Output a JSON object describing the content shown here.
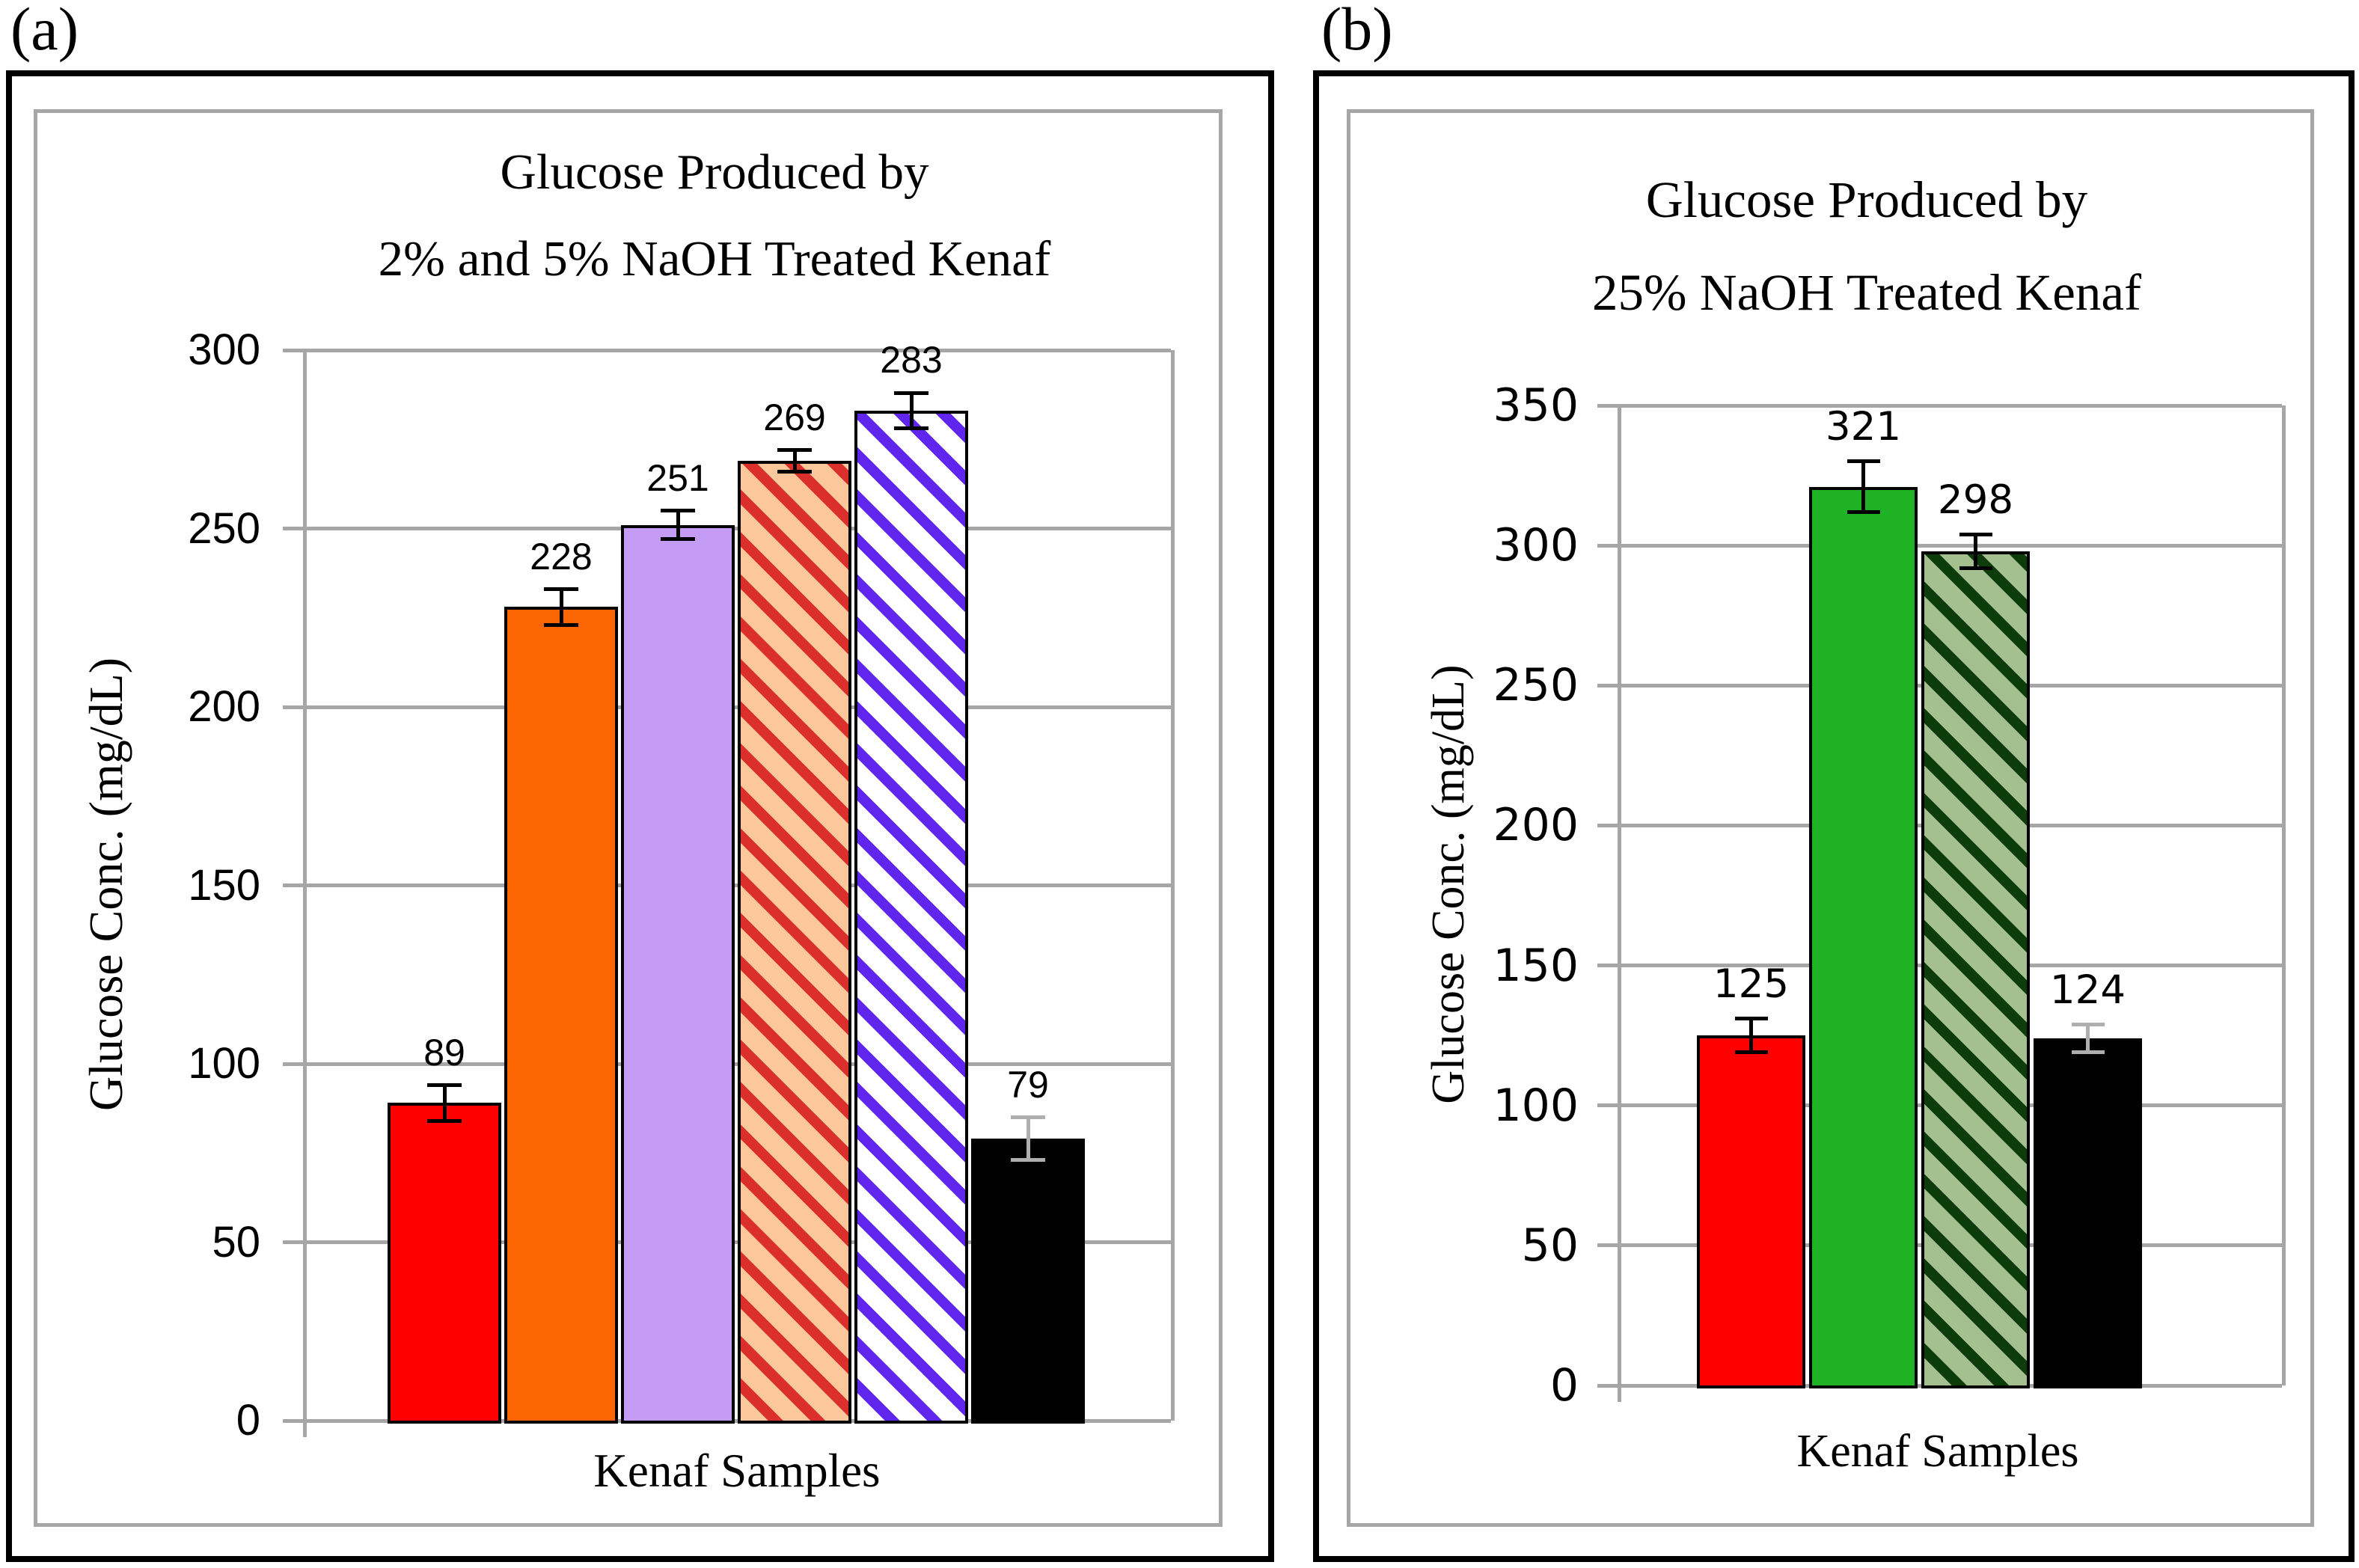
{
  "panels": [
    {
      "panel_label": "(a)",
      "title_line1": "Glucose Produced by",
      "title_line2": "2% and 5% NaOH Treated Kenaf",
      "ylabel": "Glucose Conc. (mg/dL)",
      "xlabel": "Kenaf Samples"
    },
    {
      "panel_label": "(b)",
      "title_line1": "Glucose Produced by",
      "title_line2": "25% NaOH Treated Kenaf",
      "ylabel": "Glucose Conc. (mg/dL)",
      "xlabel": "Kenaf Samples"
    }
  ],
  "chart_data": [
    {
      "type": "bar",
      "title": "Glucose Produced by 2% and 5% NaOH Treated Kenaf",
      "xlabel": "Kenaf Samples",
      "ylabel": "Glucose Conc. (mg/dL)",
      "ylim": [
        0,
        300
      ],
      "ytick_interval": 50,
      "ytick_labels": [
        "300",
        "250",
        "200",
        "150",
        "100",
        "50",
        "0"
      ],
      "grid": true,
      "legend": false,
      "values": [
        89,
        228,
        251,
        269,
        283,
        79
      ],
      "data_labels": [
        "89",
        "228",
        "251",
        "269",
        "283",
        "79"
      ],
      "error_bars": [
        5,
        5,
        4,
        3,
        5,
        6
      ],
      "axis_color": "#A6A6A6",
      "bar_styles": [
        {
          "name": "solid-red",
          "fill": "#FE0000",
          "stripe": null,
          "error_color": "#000000"
        },
        {
          "name": "solid-orange",
          "fill": "#FB6602",
          "stripe": null,
          "error_color": "#000000"
        },
        {
          "name": "solid-light-purple",
          "fill": "#C49BF5",
          "stripe": null,
          "error_color": "#000000"
        },
        {
          "name": "red-diagonal-hatch-on-peach",
          "fill": "#FBC79B",
          "stripe": "#DA2F2B",
          "error_color": "#000000"
        },
        {
          "name": "violet-diagonal-hatch-on-white",
          "fill": "#FFFFFF",
          "stripe": "#6026EE",
          "error_color": "#000000"
        },
        {
          "name": "solid-black",
          "fill": "#000000",
          "stripe": null,
          "error_color": "#AFAFAF"
        }
      ]
    },
    {
      "type": "bar",
      "title": "Glucose Produced by 25% NaOH Treated Kenaf",
      "xlabel": "Kenaf Samples",
      "ylabel": "Glucose Conc. (mg/dL)",
      "ylim": [
        0,
        350
      ],
      "ytick_interval": 50,
      "ytick_labels": [
        "350",
        "300",
        "250",
        "200",
        "150",
        "100",
        "50",
        "0"
      ],
      "grid": true,
      "legend": false,
      "values": [
        125,
        321,
        298,
        124
      ],
      "data_labels": [
        "125",
        "321",
        "298",
        "124"
      ],
      "error_bars": [
        6,
        9,
        6,
        5
      ],
      "axis_color": "#A6A6A6",
      "bar_styles": [
        {
          "name": "solid-red",
          "fill": "#FE0000",
          "stripe": null,
          "error_color": "#000000"
        },
        {
          "name": "solid-green",
          "fill": "#1FB224",
          "stripe": null,
          "error_color": "#000000"
        },
        {
          "name": "dark-green-diagonal-hatch-on-sage",
          "fill": "#A5C08F",
          "stripe": "#0C3C0A",
          "error_color": "#000000"
        },
        {
          "name": "solid-black",
          "fill": "#000000",
          "stripe": null,
          "error_color": "#AFAFAF"
        }
      ]
    }
  ]
}
